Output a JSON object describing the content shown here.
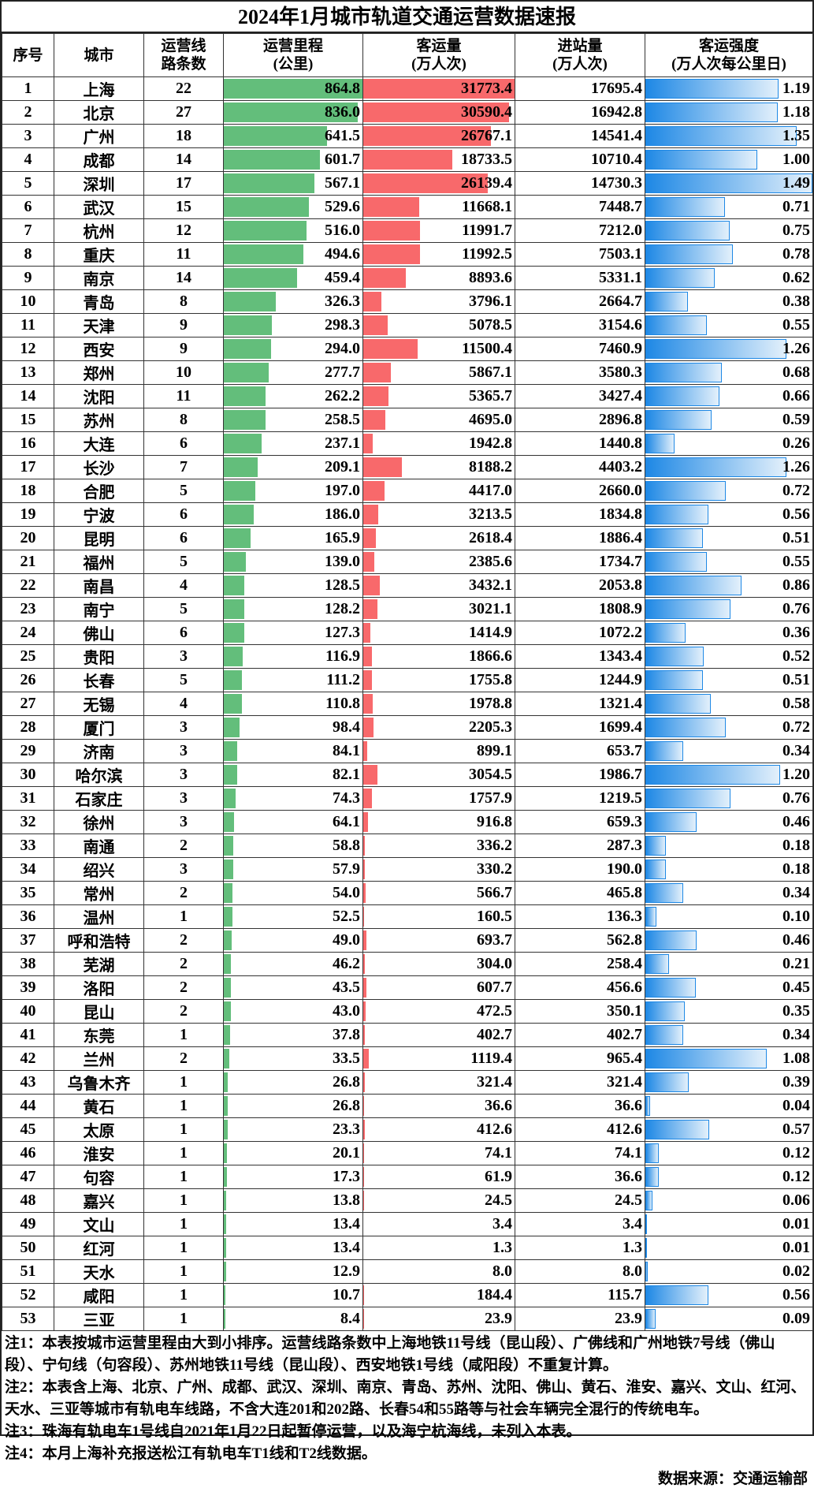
{
  "title": "2024年1月城市轨道交通运营数据速报",
  "headers": [
    "序号",
    "城市",
    "运营线\n路条数",
    "运营里程\n(公里)",
    "客运量\n(万人次)",
    "进站量\n(万人次)",
    "客运强度\n(万人次每公里日)"
  ],
  "colors": {
    "mileage_bar": "#63be7b",
    "passenger_bar": "#f8696b",
    "intensity_bar": "#1e88e5"
  },
  "rows": [
    [
      "1",
      "上海",
      "22",
      "864.8",
      "31773.4",
      "17695.4",
      "1.19"
    ],
    [
      "2",
      "北京",
      "27",
      "836.0",
      "30590.4",
      "16942.8",
      "1.18"
    ],
    [
      "3",
      "广州",
      "18",
      "641.5",
      "26767.1",
      "14541.4",
      "1.35"
    ],
    [
      "4",
      "成都",
      "14",
      "601.7",
      "18733.5",
      "10710.4",
      "1.00"
    ],
    [
      "5",
      "深圳",
      "17",
      "567.1",
      "26139.4",
      "14730.3",
      "1.49"
    ],
    [
      "6",
      "武汉",
      "15",
      "529.6",
      "11668.1",
      "7448.7",
      "0.71"
    ],
    [
      "7",
      "杭州",
      "12",
      "516.0",
      "11991.7",
      "7212.0",
      "0.75"
    ],
    [
      "8",
      "重庆",
      "11",
      "494.6",
      "11992.5",
      "7503.1",
      "0.78"
    ],
    [
      "9",
      "南京",
      "14",
      "459.4",
      "8893.6",
      "5331.1",
      "0.62"
    ],
    [
      "10",
      "青岛",
      "8",
      "326.3",
      "3796.1",
      "2664.7",
      "0.38"
    ],
    [
      "11",
      "天津",
      "9",
      "298.3",
      "5078.5",
      "3154.6",
      "0.55"
    ],
    [
      "12",
      "西安",
      "9",
      "294.0",
      "11500.4",
      "7460.9",
      "1.26"
    ],
    [
      "13",
      "郑州",
      "10",
      "277.7",
      "5867.1",
      "3580.3",
      "0.68"
    ],
    [
      "14",
      "沈阳",
      "11",
      "262.2",
      "5365.7",
      "3427.4",
      "0.66"
    ],
    [
      "15",
      "苏州",
      "8",
      "258.5",
      "4695.0",
      "2896.8",
      "0.59"
    ],
    [
      "16",
      "大连",
      "6",
      "237.1",
      "1942.8",
      "1440.8",
      "0.26"
    ],
    [
      "17",
      "长沙",
      "7",
      "209.1",
      "8188.2",
      "4403.2",
      "1.26"
    ],
    [
      "18",
      "合肥",
      "5",
      "197.0",
      "4417.0",
      "2660.0",
      "0.72"
    ],
    [
      "19",
      "宁波",
      "6",
      "186.0",
      "3213.5",
      "1834.8",
      "0.56"
    ],
    [
      "20",
      "昆明",
      "6",
      "165.9",
      "2618.4",
      "1886.4",
      "0.51"
    ],
    [
      "21",
      "福州",
      "5",
      "139.0",
      "2385.6",
      "1734.7",
      "0.55"
    ],
    [
      "22",
      "南昌",
      "4",
      "128.5",
      "3432.1",
      "2053.8",
      "0.86"
    ],
    [
      "23",
      "南宁",
      "5",
      "128.2",
      "3021.1",
      "1808.9",
      "0.76"
    ],
    [
      "24",
      "佛山",
      "6",
      "127.3",
      "1414.9",
      "1072.2",
      "0.36"
    ],
    [
      "25",
      "贵阳",
      "3",
      "116.9",
      "1866.6",
      "1343.4",
      "0.52"
    ],
    [
      "26",
      "长春",
      "5",
      "111.2",
      "1755.8",
      "1244.9",
      "0.51"
    ],
    [
      "27",
      "无锡",
      "4",
      "110.8",
      "1978.8",
      "1321.4",
      "0.58"
    ],
    [
      "28",
      "厦门",
      "3",
      "98.4",
      "2205.3",
      "1699.4",
      "0.72"
    ],
    [
      "29",
      "济南",
      "3",
      "84.1",
      "899.1",
      "653.7",
      "0.34"
    ],
    [
      "30",
      "哈尔滨",
      "3",
      "82.1",
      "3054.5",
      "1986.7",
      "1.20"
    ],
    [
      "31",
      "石家庄",
      "3",
      "74.3",
      "1757.9",
      "1219.5",
      "0.76"
    ],
    [
      "32",
      "徐州",
      "3",
      "64.1",
      "916.8",
      "659.3",
      "0.46"
    ],
    [
      "33",
      "南通",
      "2",
      "58.8",
      "336.2",
      "287.3",
      "0.18"
    ],
    [
      "34",
      "绍兴",
      "3",
      "57.9",
      "330.2",
      "190.0",
      "0.18"
    ],
    [
      "35",
      "常州",
      "2",
      "54.0",
      "566.7",
      "465.8",
      "0.34"
    ],
    [
      "36",
      "温州",
      "1",
      "52.5",
      "160.5",
      "136.3",
      "0.10"
    ],
    [
      "37",
      "呼和浩特",
      "2",
      "49.0",
      "693.7",
      "562.8",
      "0.46"
    ],
    [
      "38",
      "芜湖",
      "2",
      "46.2",
      "304.0",
      "258.4",
      "0.21"
    ],
    [
      "39",
      "洛阳",
      "2",
      "43.5",
      "607.7",
      "456.6",
      "0.45"
    ],
    [
      "40",
      "昆山",
      "2",
      "43.0",
      "472.5",
      "350.1",
      "0.35"
    ],
    [
      "41",
      "东莞",
      "1",
      "37.8",
      "402.7",
      "402.7",
      "0.34"
    ],
    [
      "42",
      "兰州",
      "2",
      "33.5",
      "1119.4",
      "965.4",
      "1.08"
    ],
    [
      "43",
      "乌鲁木齐",
      "1",
      "26.8",
      "321.4",
      "321.4",
      "0.39"
    ],
    [
      "44",
      "黄石",
      "1",
      "26.8",
      "36.6",
      "36.6",
      "0.04"
    ],
    [
      "45",
      "太原",
      "1",
      "23.3",
      "412.6",
      "412.6",
      "0.57"
    ],
    [
      "46",
      "淮安",
      "1",
      "20.1",
      "74.1",
      "74.1",
      "0.12"
    ],
    [
      "47",
      "句容",
      "1",
      "17.3",
      "61.9",
      "36.6",
      "0.12"
    ],
    [
      "48",
      "嘉兴",
      "1",
      "13.8",
      "24.5",
      "24.5",
      "0.06"
    ],
    [
      "49",
      "文山",
      "1",
      "13.4",
      "3.4",
      "3.4",
      "0.01"
    ],
    [
      "50",
      "红河",
      "1",
      "13.4",
      "1.3",
      "1.3",
      "0.01"
    ],
    [
      "51",
      "天水",
      "1",
      "12.9",
      "8.0",
      "8.0",
      "0.02"
    ],
    [
      "52",
      "咸阳",
      "1",
      "10.7",
      "184.4",
      "115.7",
      "0.56"
    ],
    [
      "53",
      "三亚",
      "1",
      "8.4",
      "23.9",
      "23.9",
      "0.09"
    ]
  ],
  "notes": [
    "注1：本表按城市运营里程由大到小排序。运营线路条数中上海地铁11号线（昆山段）、广佛线和广州地铁7号线（佛山段）、宁句线（句容段）、苏州地铁11号线（昆山段）、西安地铁1号线（咸阳段）不重复计算。",
    "注2：本表含上海、北京、广州、成都、武汉、深圳、南京、青岛、苏州、沈阳、佛山、黄石、淮安、嘉兴、文山、红河、天水、三亚等城市有轨电车线路，不含大连201和202路、长春54和55路等与社会车辆完全混行的传统电车。",
    "注3：珠海有轨电车1号线自2021年1月22日起暂停运营，以及海宁杭海线，未列入本表。",
    "注4：本月上海补充报送松江有轨电车T1线和T2线数据。"
  ],
  "source": "数据来源：交通运输部"
}
